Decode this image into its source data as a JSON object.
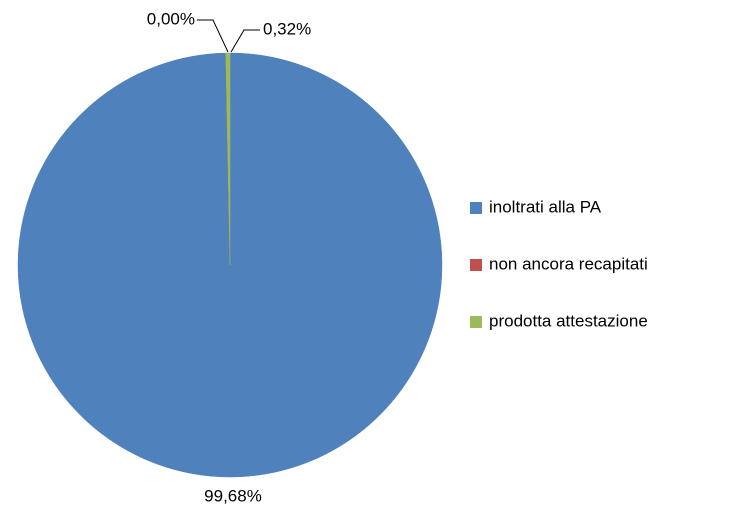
{
  "chart_data": {
    "type": "pie",
    "categories": [
      "inoltrati alla PA",
      "non ancora recapitati",
      "prodotta attestazione"
    ],
    "values": [
      99.68,
      0.0,
      0.32
    ],
    "value_labels": [
      "99,68%",
      "0,00%",
      "0,32%"
    ],
    "colors": [
      "#4f81bd",
      "#c0504d",
      "#9bbb59"
    ],
    "legend": "right"
  }
}
